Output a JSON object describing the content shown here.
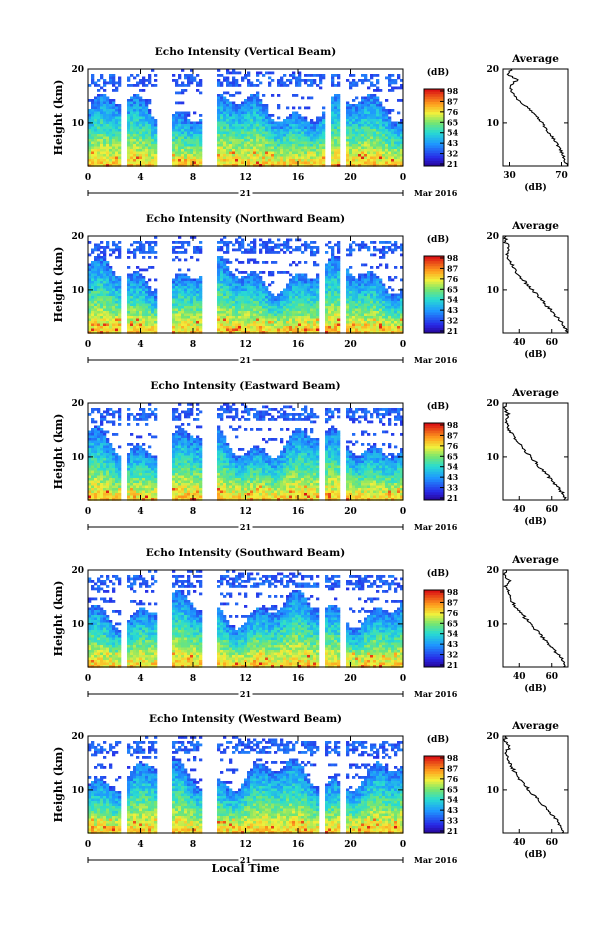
{
  "chart_data": [
    {
      "type": "heatmap",
      "title": "Echo Intensity (Vertical Beam)",
      "xlabel": "",
      "ylabel": "Height (km)",
      "x_ticks": [
        "0",
        "4",
        "8",
        "12",
        "16",
        "20",
        "0"
      ],
      "y_ticks": [
        "10",
        "20"
      ],
      "xlim": [
        0,
        24
      ],
      "ylim": [
        2,
        20
      ],
      "date_label": "21",
      "month_label": "Mar 2016",
      "colorbar": {
        "label": "(dB)",
        "ticks": [
          "98",
          "87",
          "76",
          "65",
          "54",
          "43",
          "32",
          "21"
        ],
        "range": [
          21,
          98
        ]
      },
      "gaps_hours": [
        [
          2.45,
          2.85
        ],
        [
          5.2,
          6.2
        ],
        [
          8.5,
          9.8
        ],
        [
          18.0,
          18.4
        ],
        [
          19.0,
          19.5
        ]
      ],
      "profile": {
        "title": "Average",
        "xlabel": "(dB)",
        "x_ticks": [
          "30",
          "70"
        ],
        "xlim": [
          25,
          75
        ],
        "y_ticks": [
          "10",
          "20"
        ],
        "ylim": [
          2,
          20
        ],
        "heights_km": [
          2,
          3,
          4,
          5,
          6,
          7,
          8,
          9,
          10,
          11,
          12,
          13,
          14,
          15,
          16,
          17,
          18,
          19,
          20
        ],
        "values_db": [
          74,
          73,
          71,
          69,
          67,
          64,
          61,
          58,
          55,
          52,
          48,
          43,
          38,
          34,
          31,
          31,
          36,
          29,
          31
        ]
      }
    },
    {
      "type": "heatmap",
      "title": "Echo Intensity (Northward Beam)",
      "xlabel": "",
      "ylabel": "Height (km)",
      "x_ticks": [
        "0",
        "4",
        "8",
        "12",
        "16",
        "20",
        "0"
      ],
      "y_ticks": [
        "10",
        "20"
      ],
      "xlim": [
        0,
        24
      ],
      "ylim": [
        2,
        20
      ],
      "date_label": "21",
      "month_label": "Mar 2016",
      "colorbar": {
        "label": "(dB)",
        "ticks": [
          "98",
          "87",
          "76",
          "65",
          "54",
          "43",
          "32",
          "21"
        ],
        "range": [
          21,
          98
        ]
      },
      "gaps_hours": [
        [
          2.45,
          2.85
        ],
        [
          5.2,
          6.2
        ],
        [
          8.5,
          9.8
        ],
        [
          17.5,
          17.9
        ],
        [
          19.0,
          19.5
        ]
      ],
      "profile": {
        "title": "Average",
        "xlabel": "(dB)",
        "x_ticks": [
          "40",
          "60"
        ],
        "xlim": [
          30,
          70
        ],
        "y_ticks": [
          "10",
          "20"
        ],
        "ylim": [
          2,
          20
        ],
        "heights_km": [
          2,
          3,
          4,
          5,
          6,
          7,
          8,
          9,
          10,
          11,
          12,
          13,
          14,
          15,
          16,
          17,
          18,
          19,
          20
        ],
        "values_db": [
          69,
          68,
          66,
          63,
          60,
          57,
          54,
          51,
          48,
          45,
          42,
          39,
          37,
          35,
          33,
          32,
          34,
          31,
          32
        ]
      }
    },
    {
      "type": "heatmap",
      "title": "Echo Intensity (Eastward Beam)",
      "xlabel": "",
      "ylabel": "Height (km)",
      "x_ticks": [
        "0",
        "4",
        "8",
        "12",
        "16",
        "20",
        "0"
      ],
      "y_ticks": [
        "10",
        "20"
      ],
      "xlim": [
        0,
        24
      ],
      "ylim": [
        2,
        20
      ],
      "date_label": "21",
      "month_label": "Mar 2016",
      "colorbar": {
        "label": "(dB)",
        "ticks": [
          "98",
          "87",
          "76",
          "65",
          "54",
          "43",
          "33",
          "21"
        ],
        "range": [
          21,
          98
        ]
      },
      "gaps_hours": [
        [
          2.45,
          2.85
        ],
        [
          5.2,
          6.2
        ],
        [
          8.5,
          9.8
        ],
        [
          17.5,
          17.9
        ],
        [
          19.0,
          19.5
        ]
      ],
      "profile": {
        "title": "Average",
        "xlabel": "(dB)",
        "x_ticks": [
          "40",
          "60"
        ],
        "xlim": [
          30,
          70
        ],
        "y_ticks": [
          "10",
          "20"
        ],
        "ylim": [
          2,
          20
        ],
        "heights_km": [
          2,
          3,
          4,
          5,
          6,
          7,
          8,
          9,
          10,
          11,
          12,
          13,
          14,
          15,
          16,
          17,
          18,
          19,
          20
        ],
        "values_db": [
          68,
          67,
          65,
          62,
          59,
          56,
          53,
          50,
          47,
          44,
          41,
          38,
          36,
          34,
          33,
          32,
          33,
          31,
          32
        ]
      }
    },
    {
      "type": "heatmap",
      "title": "Echo Intensity (Southward Beam)",
      "xlabel": "",
      "ylabel": "Height (km)",
      "x_ticks": [
        "0",
        "4",
        "8",
        "12",
        "16",
        "20",
        "0"
      ],
      "y_ticks": [
        "10",
        "20"
      ],
      "xlim": [
        0,
        24
      ],
      "ylim": [
        2,
        20
      ],
      "date_label": "21",
      "month_label": "Mar 2016",
      "colorbar": {
        "label": "(dB)",
        "ticks": [
          "98",
          "87",
          "76",
          "65",
          "54",
          "43",
          "32",
          "21"
        ],
        "range": [
          21,
          98
        ]
      },
      "gaps_hours": [
        [
          2.45,
          2.85
        ],
        [
          5.2,
          6.2
        ],
        [
          8.5,
          9.8
        ],
        [
          17.5,
          17.9
        ],
        [
          19.0,
          19.5
        ]
      ],
      "profile": {
        "title": "Average",
        "xlabel": "(dB)",
        "x_ticks": [
          "40",
          "60"
        ],
        "xlim": [
          30,
          70
        ],
        "y_ticks": [
          "10",
          "20"
        ],
        "ylim": [
          2,
          20
        ],
        "heights_km": [
          2,
          3,
          4,
          5,
          6,
          7,
          8,
          9,
          10,
          11,
          12,
          13,
          14,
          15,
          16,
          17,
          18,
          19,
          20
        ],
        "values_db": [
          68,
          67,
          65,
          62,
          59,
          56,
          53,
          50,
          47,
          44,
          41,
          38,
          36,
          34,
          33,
          32,
          34,
          31,
          32
        ]
      }
    },
    {
      "type": "heatmap",
      "title": "Echo Intensity (Westward Beam)",
      "xlabel": "Local Time",
      "ylabel": "Height (km)",
      "x_ticks": [
        "0",
        "4",
        "8",
        "12",
        "16",
        "20",
        "0"
      ],
      "y_ticks": [
        "10",
        "20"
      ],
      "xlim": [
        0,
        24
      ],
      "ylim": [
        2,
        20
      ],
      "date_label": "21",
      "month_label": "Mar 2016",
      "colorbar": {
        "label": "(dB)",
        "ticks": [
          "98",
          "87",
          "76",
          "65",
          "54",
          "43",
          "33",
          "21"
        ],
        "range": [
          21,
          98
        ]
      },
      "gaps_hours": [
        [
          2.45,
          2.85
        ],
        [
          5.2,
          6.2
        ],
        [
          8.5,
          9.8
        ],
        [
          17.5,
          17.9
        ],
        [
          19.0,
          19.5
        ]
      ],
      "profile": {
        "title": "Average",
        "xlabel": "(dB)",
        "x_ticks": [
          "40",
          "60"
        ],
        "xlim": [
          30,
          70
        ],
        "y_ticks": [
          "10",
          "20"
        ],
        "ylim": [
          2,
          20
        ],
        "heights_km": [
          2,
          3,
          4,
          5,
          6,
          7,
          8,
          9,
          10,
          11,
          12,
          13,
          14,
          15,
          16,
          17,
          18,
          19,
          20
        ],
        "values_db": [
          67,
          66,
          64,
          61,
          58,
          55,
          52,
          49,
          46,
          43,
          40,
          38,
          36,
          34,
          33,
          32,
          34,
          31,
          32
        ]
      }
    }
  ]
}
